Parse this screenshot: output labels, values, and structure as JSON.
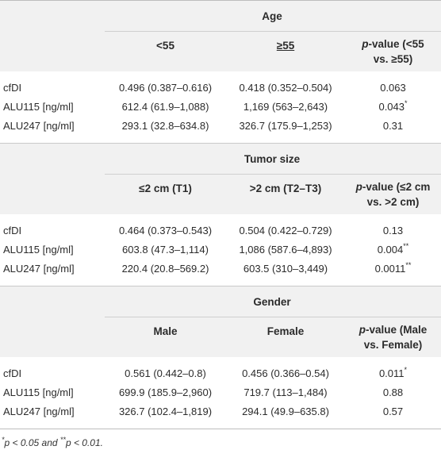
{
  "groups": [
    {
      "title": "Age",
      "headers": [
        "<55",
        "≥55",
        "p-value (<55 vs. ≥55)"
      ],
      "header_parts": {
        "c1": "<55",
        "c2": "≥55",
        "p_prefix": "p",
        "p_rest": "-value (<55",
        "p_line2": "vs. ≥55)"
      },
      "rows": [
        {
          "label": "cfDI",
          "v1": "0.496 (0.387–0.616)",
          "v2": "0.418 (0.352–0.504)",
          "p": "0.063",
          "sig": ""
        },
        {
          "label": "ALU115 [ng/ml]",
          "v1": "612.4 (61.9–1,088)",
          "v2": "1,169 (563–2,643)",
          "p": "0.043",
          "sig": "*"
        },
        {
          "label": "ALU247 [ng/ml]",
          "v1": "293.1 (32.8–634.8)",
          "v2": "326.7 (175.9–1,253)",
          "p": "0.31",
          "sig": ""
        }
      ]
    },
    {
      "title": "Tumor size",
      "header_parts": {
        "c1": "≤2 cm (T1)",
        "c2": ">2 cm (T2–T3)",
        "p_prefix": "p",
        "p_rest": "-value (≤2 cm",
        "p_line2": "vs. >2 cm)"
      },
      "rows": [
        {
          "label": "cfDI",
          "v1": "0.464 (0.373–0.543)",
          "v2": "0.504 (0.422–0.729)",
          "p": "0.13",
          "sig": ""
        },
        {
          "label": "ALU115 [ng/ml]",
          "v1": "603.8 (47.3–1,114)",
          "v2": "1,086 (587.6–4,893)",
          "p": "0.004",
          "sig": "**"
        },
        {
          "label": "ALU247 [ng/ml]",
          "v1": "220.4 (20.8–569.2)",
          "v2": "603.5 (310–3,449)",
          "p": "0.0011",
          "sig": "**"
        }
      ]
    },
    {
      "title": "Gender",
      "header_parts": {
        "c1": "Male",
        "c2": "Female",
        "p_prefix": "p",
        "p_rest": "-value (Male",
        "p_line2": "vs. Female)"
      },
      "rows": [
        {
          "label": "cfDI",
          "v1": "0.561 (0.442–0.8)",
          "v2": "0.456 (0.366–0.54)",
          "p": "0.011",
          "sig": "*"
        },
        {
          "label": "ALU115 [ng/ml]",
          "v1": "699.9 (185.9–2,960)",
          "v2": "719.7 (113–1,484)",
          "p": "0.88",
          "sig": ""
        },
        {
          "label": "ALU247 [ng/ml]",
          "v1": "326.7 (102.4–1,819)",
          "v2": "294.1 (49.9–635.8)",
          "p": "0.57",
          "sig": ""
        }
      ]
    }
  ],
  "footnote": {
    "s1": "*",
    "t1": "p < 0.05 and ",
    "s2": "**",
    "t2": "p < 0.01."
  }
}
